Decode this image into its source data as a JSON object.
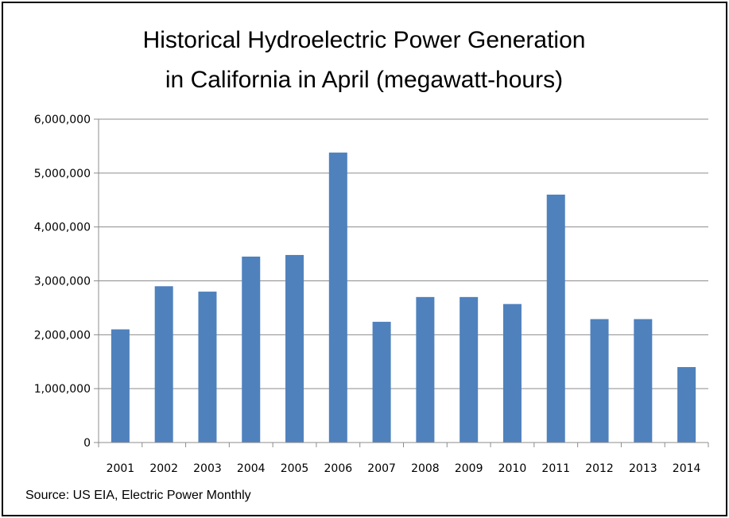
{
  "chart_data": {
    "type": "bar",
    "title_lines": [
      "Historical Hydroelectric Power Generation",
      "in California in April (megawatt-hours)"
    ],
    "xlabel": "",
    "ylabel": "",
    "categories": [
      "2001",
      "2002",
      "2003",
      "2004",
      "2005",
      "2006",
      "2007",
      "2008",
      "2009",
      "2010",
      "2011",
      "2012",
      "2013",
      "2014"
    ],
    "values": [
      2100000,
      2900000,
      2800000,
      3450000,
      3480000,
      5380000,
      2240000,
      2700000,
      2700000,
      2570000,
      4600000,
      2290000,
      2290000,
      1400000
    ],
    "ylim": [
      0,
      6000000
    ],
    "yticks": [
      0,
      1000000,
      2000000,
      3000000,
      4000000,
      5000000,
      6000000
    ],
    "ytick_labels": [
      "0",
      "1,000,000",
      "2,000,000",
      "3,000,000",
      "4,000,000",
      "5,000,000",
      "6,000,000"
    ],
    "grid": true,
    "legend": "none",
    "bar_color": "#4f81bd",
    "source": "Source: US EIA, Electric Power Monthly"
  }
}
